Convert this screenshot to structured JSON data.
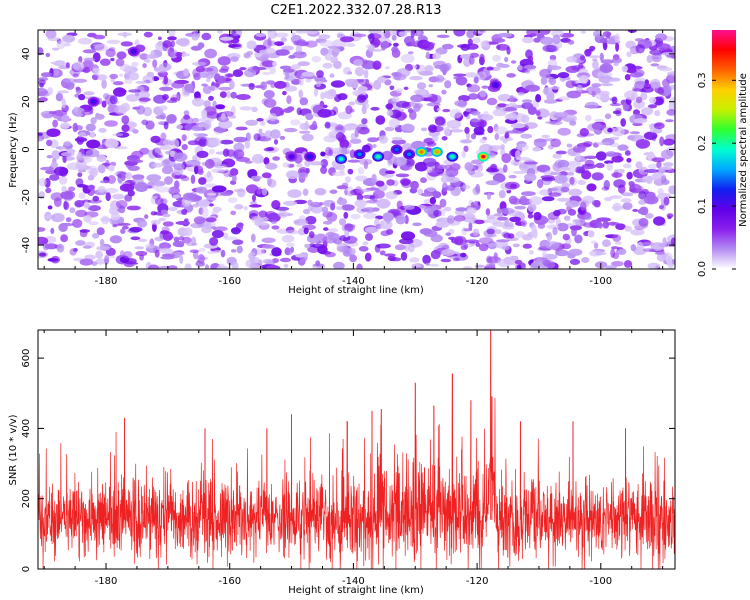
{
  "title": "C2E1.2022.332.07.28.R13",
  "chart_data": [
    {
      "type": "heatmap",
      "xlabel": "Height of straight line (km)",
      "ylabel": "Frequency (Hz)",
      "xlim": [
        -191,
        -88
      ],
      "ylim": [
        -50,
        50
      ],
      "x_ticks": [
        -180,
        -160,
        -140,
        -120,
        -100
      ],
      "y_ticks": [
        -40,
        -20,
        0,
        20,
        40
      ],
      "colorbar": {
        "label": "Normalized spectral amplitude",
        "range": [
          0.0,
          0.38
        ],
        "ticks": [
          0.0,
          0.1,
          0.2,
          0.3
        ],
        "tick_labels": [
          "0.0",
          "0.1",
          "0.2",
          "0.3"
        ],
        "colors": [
          "#ffffff",
          "#b38cf2",
          "#8a20ee",
          "#6000e8",
          "#1020f0",
          "#00a8ff",
          "#00ffd0",
          "#30ff30",
          "#c8f000",
          "#ffd000",
          "#ff6000",
          "#ff0000",
          "#ff1090"
        ]
      },
      "highlights": [
        {
          "x": -119,
          "y": -3,
          "value": 0.36
        },
        {
          "x": -124,
          "y": -3,
          "value": 0.2
        },
        {
          "x": -126.5,
          "y": -1,
          "value": 0.3
        },
        {
          "x": -129,
          "y": -1,
          "value": 0.31
        },
        {
          "x": -131,
          "y": -2,
          "value": 0.15
        },
        {
          "x": -133,
          "y": 0,
          "value": 0.14
        },
        {
          "x": -136,
          "y": -3,
          "value": 0.2
        },
        {
          "x": -139,
          "y": -2,
          "value": 0.15
        },
        {
          "x": -142,
          "y": -4,
          "value": 0.19
        },
        {
          "x": -147,
          "y": -3,
          "value": 0.12
        },
        {
          "x": -150,
          "y": -3,
          "value": 0.1
        },
        {
          "x": -175.5,
          "y": 41,
          "value": 0.11
        },
        {
          "x": -182,
          "y": 20,
          "value": 0.11
        },
        {
          "x": -117,
          "y": 27,
          "value": 0.11
        }
      ]
    },
    {
      "type": "line",
      "xlabel": "Height of straight line (km)",
      "ylabel": "SNR (10 * v/v)",
      "xlim": [
        -191,
        -88
      ],
      "ylim": [
        0,
        680
      ],
      "x_ticks": [
        -180,
        -160,
        -140,
        -120,
        -100
      ],
      "y_ticks": [
        0,
        200,
        400,
        600
      ],
      "series_color": "#ee2222",
      "baseline_mean": 140,
      "peaks": [
        {
          "x": -117.8,
          "y": 680
        },
        {
          "x": -117.6,
          "y": 490
        },
        {
          "x": -124,
          "y": 555
        },
        {
          "x": -130,
          "y": 530
        },
        {
          "x": -135.5,
          "y": 455
        },
        {
          "x": -137,
          "y": 450
        },
        {
          "x": -177,
          "y": 430
        },
        {
          "x": -150,
          "y": 440
        },
        {
          "x": -121,
          "y": 480
        },
        {
          "x": -127,
          "y": 465
        },
        {
          "x": -113,
          "y": 420
        },
        {
          "x": -141,
          "y": 420
        },
        {
          "x": -96,
          "y": 400
        },
        {
          "x": -154,
          "y": 400
        },
        {
          "x": -164,
          "y": 400
        },
        {
          "x": -104.5,
          "y": 420
        }
      ]
    }
  ]
}
